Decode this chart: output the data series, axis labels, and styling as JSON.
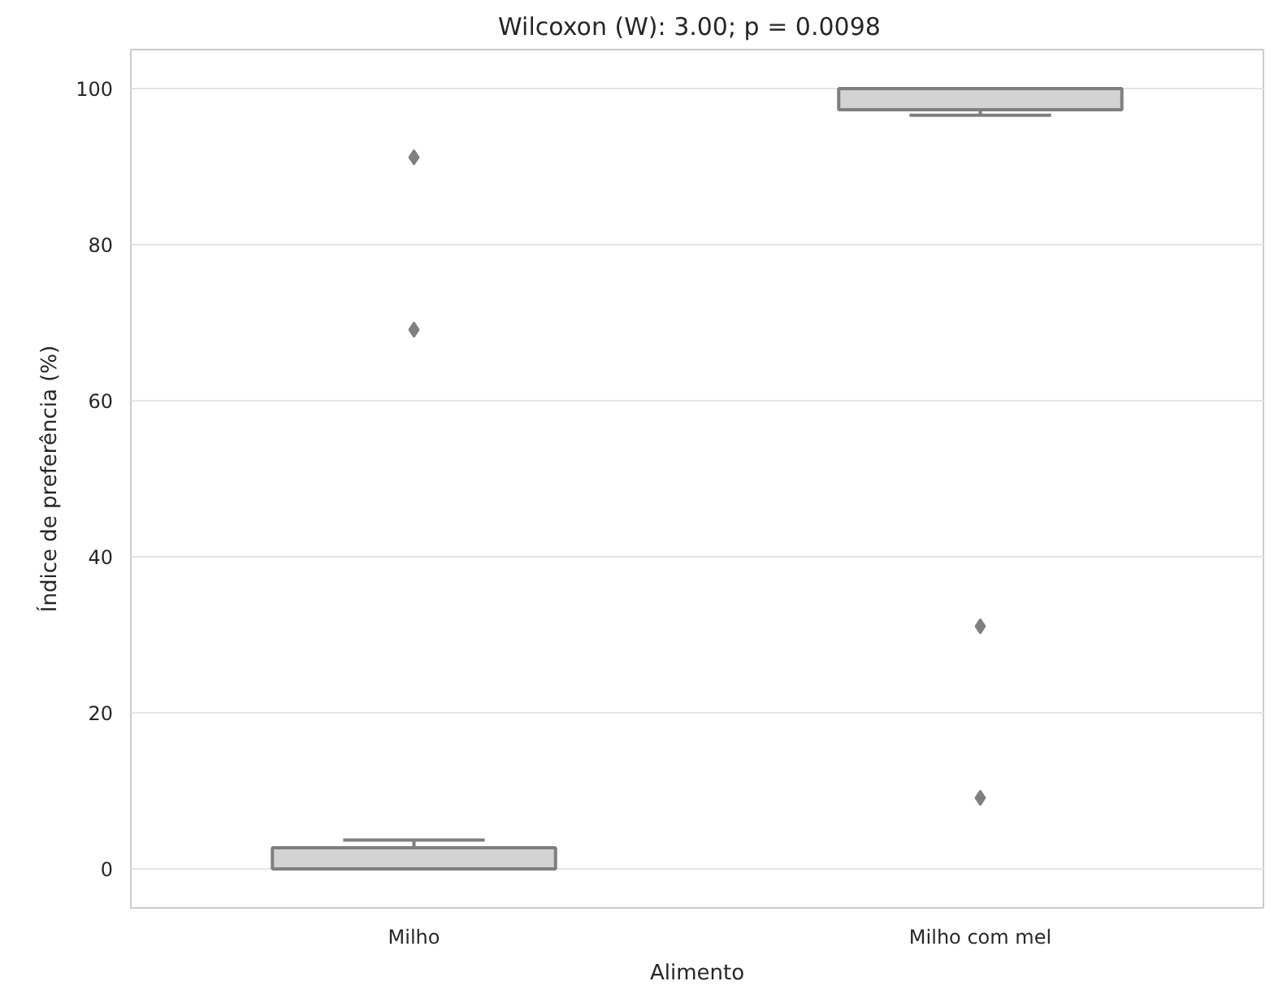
{
  "chart_data": {
    "type": "box",
    "title": "Wilcoxon  (W): 3.00;  p = 0.0098",
    "xlabel": "Alimento",
    "ylabel": "Índice de preferência (%)",
    "categories": [
      "Milho",
      "Milho com mel"
    ],
    "boxes": [
      {
        "low": 0,
        "q1": 0,
        "median": 0,
        "q3": 2.7,
        "high": 3.7,
        "outliers": [
          91.2,
          69.1
        ]
      },
      {
        "low": 96.6,
        "q1": 97.3,
        "median": 100,
        "q3": 100,
        "high": 100,
        "outliers": [
          31.1,
          9.1
        ]
      }
    ],
    "color": "#d3d3d3",
    "marker": "diamond",
    "ylim": [
      -5,
      105
    ],
    "yticks": [
      0,
      20,
      40,
      60,
      80,
      100
    ],
    "grid": "y"
  }
}
